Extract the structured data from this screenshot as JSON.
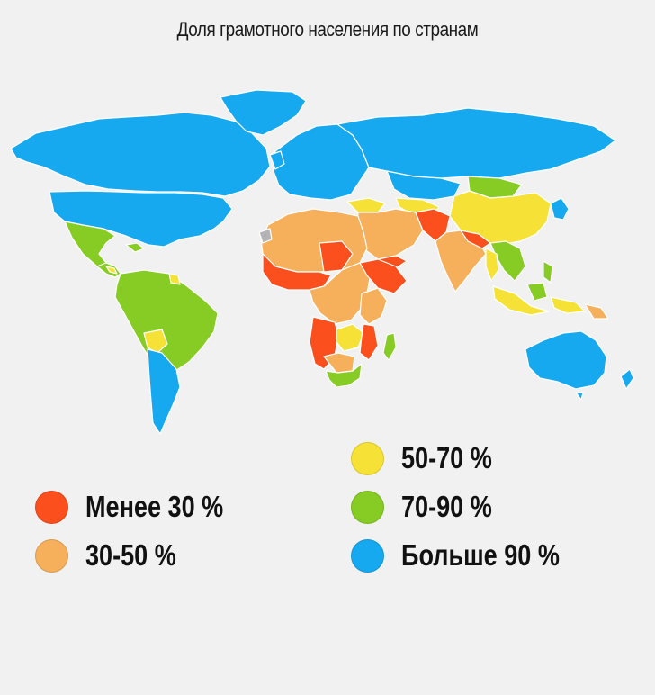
{
  "title": "Доля грамотного населения по странам",
  "colors": {
    "ocean": "#f1f1f1",
    "border": "#ffffff",
    "nodata": "#b4b4b4"
  },
  "legend": [
    {
      "label": "Менее 30 %",
      "color": "#fb4f1e"
    },
    {
      "label": "30-50 %",
      "color": "#f6b05c"
    },
    {
      "label": "50-70 %",
      "color": "#f6e236"
    },
    {
      "label": "70-90 %",
      "color": "#86cc24"
    },
    {
      "label": "Больше 90 %",
      "color": "#16a9f0"
    }
  ]
}
